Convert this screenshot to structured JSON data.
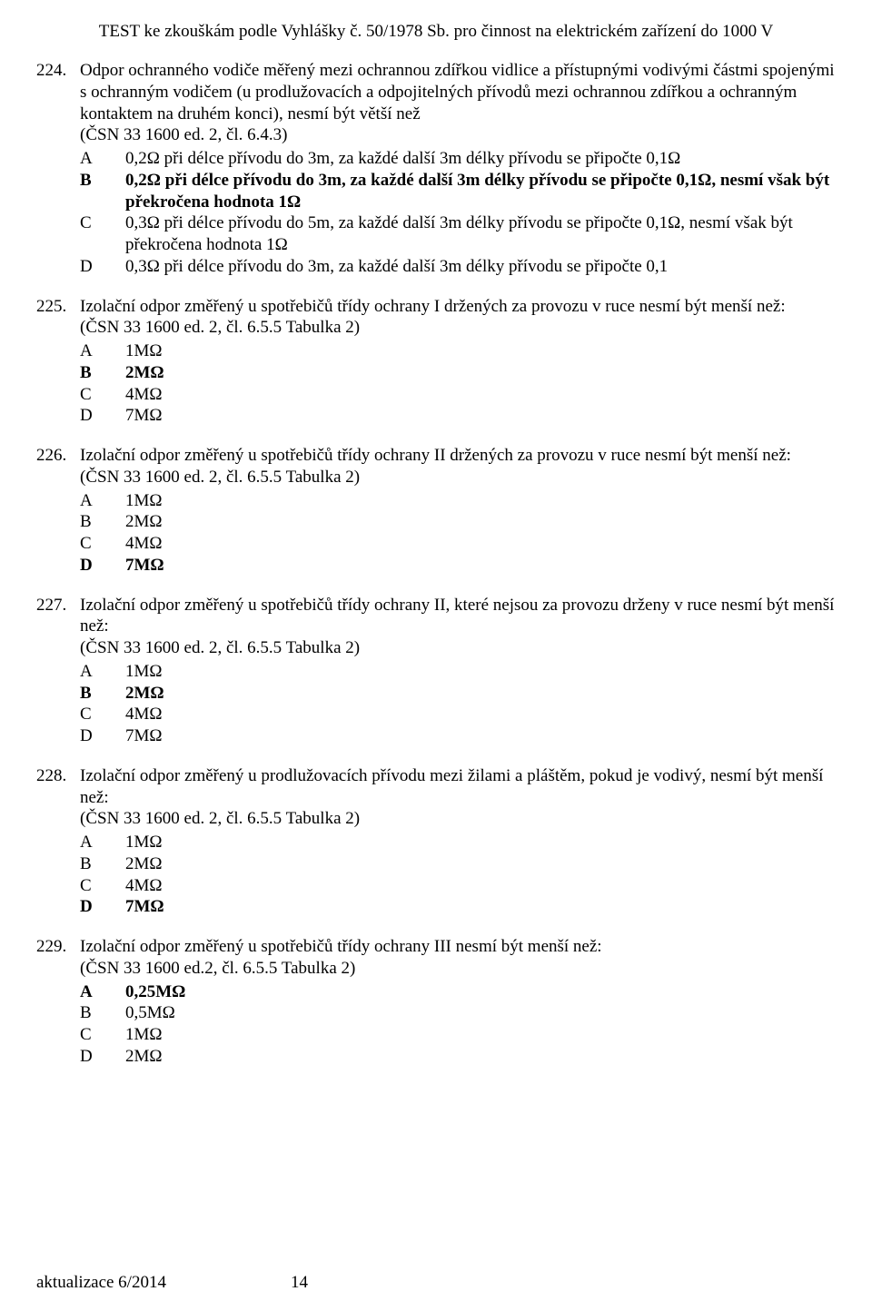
{
  "title": "TEST ke zkouškám podle Vyhlášky č. 50/1978 Sb. pro činnost na elektrickém zařízení do 1000 V",
  "footer_left": "aktualizace 6/2014",
  "footer_page": "14",
  "questions": [
    {
      "num": "224.",
      "text": "Odpor ochranného vodiče měřený mezi ochrannou zdířkou vidlice a přístupnými vodivými částmi spojenými s ochranným vodičem (u prodlužovacích a odpojitelných přívodů mezi ochrannou zdířkou a ochranným kontaktem na druhém konci), nesmí být větší než",
      "ref": "(ČSN 33 1600 ed. 2, čl. 6.4.3)",
      "options": [
        {
          "letter": "A",
          "text": "0,2Ω při délce přívodu do 3m, za každé další 3m délky přívodu se připočte 0,1Ω",
          "bold": false
        },
        {
          "letter": "B",
          "text": "0,2Ω při délce přívodu do 3m, za každé další 3m délky přívodu se připočte 0,1Ω, nesmí však být překročena hodnota 1Ω",
          "bold": true
        },
        {
          "letter": "C",
          "text": "0,3Ω při délce přívodu do 5m, za každé další 3m délky přívodu se připočte 0,1Ω, nesmí však být překročena hodnota 1Ω",
          "bold": false
        },
        {
          "letter": "D",
          "text": "0,3Ω při délce přívodu do 3m, za každé další 3m délky přívodu se připočte 0,1",
          "bold": false
        }
      ]
    },
    {
      "num": "225.",
      "text": "Izolační odpor změřený u spotřebičů třídy ochrany I držených za provozu v ruce nesmí být menší než:",
      "ref": "(ČSN 33 1600 ed. 2, čl. 6.5.5 Tabulka 2)",
      "options": [
        {
          "letter": "A",
          "text": "1MΩ",
          "bold": false
        },
        {
          "letter": "B",
          "text": "2MΩ",
          "bold": true
        },
        {
          "letter": "C",
          "text": "4MΩ",
          "bold": false
        },
        {
          "letter": "D",
          "text": "7MΩ",
          "bold": false
        }
      ]
    },
    {
      "num": "226.",
      "text": "Izolační odpor změřený u spotřebičů třídy ochrany II držených za provozu v ruce nesmí být menší než:",
      "ref": "(ČSN 33 1600 ed. 2, čl. 6.5.5 Tabulka 2)",
      "options": [
        {
          "letter": "A",
          "text": "1MΩ",
          "bold": false
        },
        {
          "letter": "B",
          "text": "2MΩ",
          "bold": false
        },
        {
          "letter": "C",
          "text": "4MΩ",
          "bold": false
        },
        {
          "letter": "D",
          "text": "7MΩ",
          "bold": true
        }
      ]
    },
    {
      "num": "227.",
      "text": "Izolační odpor změřený u spotřebičů třídy ochrany II, které nejsou za provozu drženy v ruce nesmí být menší než:",
      "ref": "(ČSN 33 1600 ed. 2, čl. 6.5.5 Tabulka 2)",
      "options": [
        {
          "letter": "A",
          "text": "1MΩ",
          "bold": false
        },
        {
          "letter": "B",
          "text": "2MΩ",
          "bold": true
        },
        {
          "letter": "C",
          "text": "4MΩ",
          "bold": false
        },
        {
          "letter": "D",
          "text": "7MΩ",
          "bold": false
        }
      ]
    },
    {
      "num": "228.",
      "text": "Izolační odpor změřený u prodlužovacích přívodu mezi žilami a pláštěm, pokud je vodivý, nesmí být menší než:",
      "ref": "(ČSN 33 1600 ed. 2, čl. 6.5.5 Tabulka 2)",
      "options": [
        {
          "letter": "A",
          "text": "1MΩ",
          "bold": false
        },
        {
          "letter": "B",
          "text": "2MΩ",
          "bold": false
        },
        {
          "letter": "C",
          "text": "4MΩ",
          "bold": false
        },
        {
          "letter": "D",
          "text": "7MΩ",
          "bold": true
        }
      ]
    },
    {
      "num": "229.",
      "text": "Izolační odpor změřený u spotřebičů třídy ochrany III nesmí být menší než:",
      "ref": "(ČSN 33 1600 ed.2, čl. 6.5.5 Tabulka 2)",
      "options": [
        {
          "letter": "A",
          "text": "0,25MΩ",
          "bold": true
        },
        {
          "letter": "B",
          "text": "0,5MΩ",
          "bold": false
        },
        {
          "letter": "C",
          "text": "1MΩ",
          "bold": false
        },
        {
          "letter": "D",
          "text": "2MΩ",
          "bold": false
        }
      ]
    }
  ]
}
